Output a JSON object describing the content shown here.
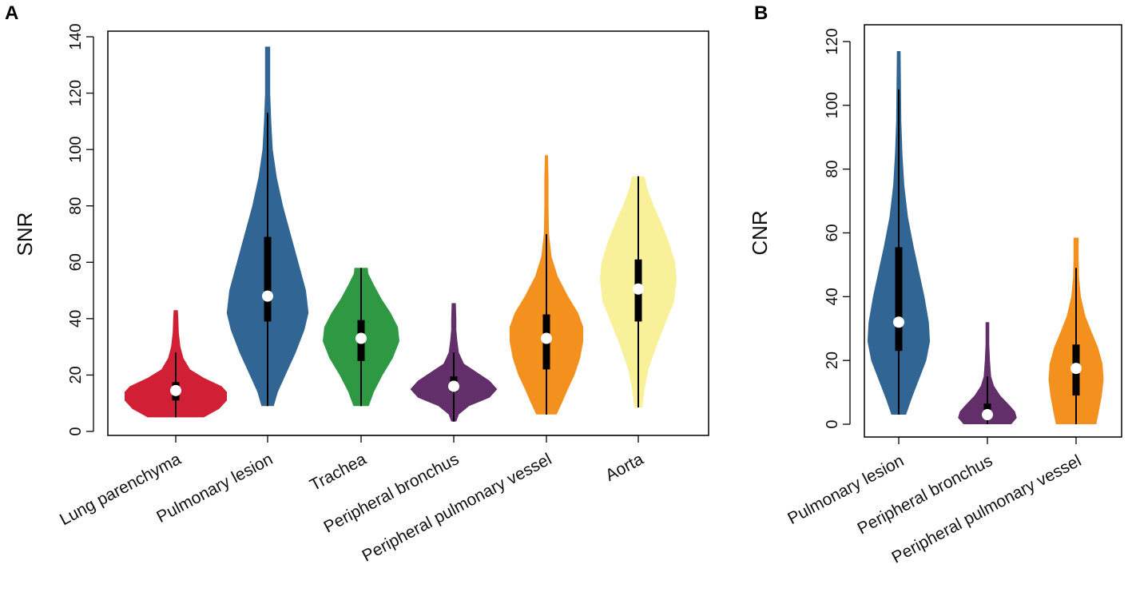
{
  "chart_data": [
    {
      "type": "violin",
      "panel_label": "A",
      "ylabel": "SNR",
      "xlabel": "",
      "ylim": [
        0,
        140
      ],
      "yticks": [
        0,
        20,
        40,
        60,
        80,
        100,
        120,
        140
      ],
      "categories": [
        "Lung parenchyma",
        "Pulmonary lesion",
        "Trachea",
        "Peripheral bronchus",
        "Peripheral pulmonary vessel",
        "Aorta"
      ],
      "series": [
        {
          "name": "Lung parenchyma",
          "color": "#d11f35",
          "min": 5,
          "max": 43,
          "q1": 11,
          "median": 14.5,
          "q3": 17.5,
          "whisker_low": 5,
          "whisker_high": 28,
          "density": [
            [
              5,
              0.55
            ],
            [
              8,
              0.85
            ],
            [
              11,
              1.0
            ],
            [
              14,
              1.0
            ],
            [
              16,
              0.9
            ],
            [
              19,
              0.55
            ],
            [
              22,
              0.28
            ],
            [
              26,
              0.15
            ],
            [
              30,
              0.09
            ],
            [
              35,
              0.06
            ],
            [
              40,
              0.05
            ],
            [
              43,
              0.04
            ]
          ]
        },
        {
          "name": "Pulmonary lesion",
          "color": "#316694",
          "min": 9,
          "max": 136.5,
          "q1": 39,
          "median": 48,
          "q3": 69,
          "whisker_low": 9,
          "whisker_high": 113,
          "density": [
            [
              9,
              0.12
            ],
            [
              14,
              0.2
            ],
            [
              20,
              0.35
            ],
            [
              28,
              0.55
            ],
            [
              36,
              0.72
            ],
            [
              42,
              0.8
            ],
            [
              50,
              0.75
            ],
            [
              60,
              0.6
            ],
            [
              70,
              0.45
            ],
            [
              80,
              0.3
            ],
            [
              90,
              0.18
            ],
            [
              100,
              0.1
            ],
            [
              110,
              0.07
            ],
            [
              120,
              0.05
            ],
            [
              130,
              0.05
            ],
            [
              136.5,
              0.05
            ]
          ]
        },
        {
          "name": "Trachea",
          "color": "#2e9843",
          "min": 9,
          "max": 58,
          "q1": 25,
          "median": 33,
          "q3": 39.5,
          "whisker_low": 9,
          "whisker_high": 58,
          "density": [
            [
              9,
              0.15
            ],
            [
              14,
              0.25
            ],
            [
              20,
              0.42
            ],
            [
              26,
              0.62
            ],
            [
              32,
              0.75
            ],
            [
              37,
              0.72
            ],
            [
              42,
              0.58
            ],
            [
              47,
              0.4
            ],
            [
              52,
              0.25
            ],
            [
              56,
              0.14
            ],
            [
              58,
              0.13
            ]
          ]
        },
        {
          "name": "Peripheral bronchus",
          "color": "#632f6a",
          "min": 3.5,
          "max": 45.5,
          "q1": 14,
          "median": 16,
          "q3": 19.5,
          "whisker_low": 3.5,
          "whisker_high": 28,
          "density": [
            [
              3.5,
              0.05
            ],
            [
              6,
              0.1
            ],
            [
              9,
              0.3
            ],
            [
              12,
              0.7
            ],
            [
              15,
              0.85
            ],
            [
              18,
              0.7
            ],
            [
              21,
              0.45
            ],
            [
              24,
              0.2
            ],
            [
              28,
              0.1
            ],
            [
              32,
              0.07
            ],
            [
              36,
              0.05
            ],
            [
              40,
              0.05
            ],
            [
              45.5,
              0.04
            ]
          ]
        },
        {
          "name": "Peripheral pulmonary vessel",
          "color": "#f4901d",
          "min": 6,
          "max": 98,
          "q1": 22,
          "median": 33,
          "q3": 41.5,
          "whisker_low": 6,
          "whisker_high": 70,
          "density": [
            [
              6,
              0.2
            ],
            [
              10,
              0.3
            ],
            [
              15,
              0.42
            ],
            [
              20,
              0.55
            ],
            [
              26,
              0.66
            ],
            [
              32,
              0.72
            ],
            [
              37,
              0.72
            ],
            [
              42,
              0.62
            ],
            [
              48,
              0.42
            ],
            [
              55,
              0.22
            ],
            [
              62,
              0.1
            ],
            [
              70,
              0.05
            ],
            [
              80,
              0.04
            ],
            [
              90,
              0.04
            ],
            [
              98,
              0.03
            ]
          ]
        },
        {
          "name": "Aorta",
          "color": "#f8f19a",
          "min": 8.5,
          "max": 90.5,
          "q1": 39,
          "median": 50.5,
          "q3": 61,
          "whisker_low": 8.5,
          "whisker_high": 90.5,
          "density": [
            [
              8.5,
              0.08
            ],
            [
              15,
              0.12
            ],
            [
              22,
              0.2
            ],
            [
              30,
              0.35
            ],
            [
              38,
              0.52
            ],
            [
              46,
              0.7
            ],
            [
              54,
              0.75
            ],
            [
              60,
              0.72
            ],
            [
              67,
              0.6
            ],
            [
              74,
              0.45
            ],
            [
              80,
              0.3
            ],
            [
              86,
              0.18
            ],
            [
              90.5,
              0.12
            ]
          ]
        }
      ]
    },
    {
      "type": "violin",
      "panel_label": "B",
      "ylabel": "CNR",
      "xlabel": "",
      "ylim": [
        0,
        120
      ],
      "yticks": [
        0,
        20,
        40,
        60,
        80,
        100,
        120
      ],
      "categories": [
        "Pulmonary lesion",
        "Peripheral bronchus",
        "Peripheral pulmonary vessel"
      ],
      "series": [
        {
          "name": "Pulmonary lesion",
          "color": "#316694",
          "min": 3,
          "max": 117,
          "q1": 23,
          "median": 32,
          "q3": 55.5,
          "whisker_low": 3,
          "whisker_high": 105,
          "density": [
            [
              3,
              0.2
            ],
            [
              8,
              0.35
            ],
            [
              14,
              0.55
            ],
            [
              20,
              0.75
            ],
            [
              26,
              0.85
            ],
            [
              32,
              0.82
            ],
            [
              40,
              0.7
            ],
            [
              48,
              0.55
            ],
            [
              56,
              0.4
            ],
            [
              65,
              0.25
            ],
            [
              75,
              0.15
            ],
            [
              85,
              0.1
            ],
            [
              95,
              0.07
            ],
            [
              105,
              0.06
            ],
            [
              117,
              0.05
            ]
          ]
        },
        {
          "name": "Peripheral bronchus",
          "color": "#632f6a",
          "min": 0,
          "max": 32,
          "q1": 1.5,
          "median": 3,
          "q3": 6.5,
          "whisker_low": 0,
          "whisker_high": 15,
          "density": [
            [
              0,
              0.65
            ],
            [
              2,
              0.8
            ],
            [
              4,
              0.75
            ],
            [
              6,
              0.6
            ],
            [
              9,
              0.35
            ],
            [
              12,
              0.18
            ],
            [
              15,
              0.1
            ],
            [
              20,
              0.07
            ],
            [
              25,
              0.05
            ],
            [
              32,
              0.05
            ]
          ]
        },
        {
          "name": "Peripheral pulmonary vessel",
          "color": "#f4901d",
          "min": 0,
          "max": 58.5,
          "q1": 9,
          "median": 17.5,
          "q3": 25,
          "whisker_low": 0,
          "whisker_high": 49,
          "density": [
            [
              0,
              0.55
            ],
            [
              4,
              0.62
            ],
            [
              9,
              0.7
            ],
            [
              14,
              0.75
            ],
            [
              19,
              0.72
            ],
            [
              24,
              0.6
            ],
            [
              29,
              0.42
            ],
            [
              34,
              0.25
            ],
            [
              40,
              0.13
            ],
            [
              46,
              0.08
            ],
            [
              52,
              0.07
            ],
            [
              58.5,
              0.07
            ]
          ]
        }
      ]
    }
  ]
}
